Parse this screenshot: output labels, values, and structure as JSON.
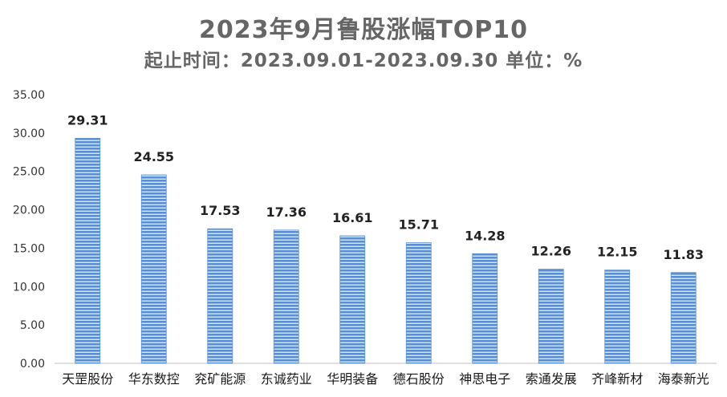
{
  "title": "2023年9月鲁股涨幅TOP10",
  "subtitle": "起止时间：2023.09.01-2023.09.30 单位：%",
  "colors": {
    "bar": "#5b8fd1",
    "bar_stripe": "#dbe7f6",
    "axis": "#bfbfbf",
    "text": "#666666"
  },
  "chart_data": {
    "type": "bar",
    "title": "2023年9月鲁股涨幅TOP10",
    "subtitle": "起止时间：2023.09.01-2023.09.30 单位：%",
    "categories": [
      "天罡股份",
      "华东数控",
      "兖矿能源",
      "东诚药业",
      "华明装备",
      "德石股份",
      "神思电子",
      "索通发展",
      "齐峰新材",
      "海泰新光"
    ],
    "values": [
      29.31,
      24.55,
      17.53,
      17.36,
      16.61,
      15.71,
      14.28,
      12.26,
      12.15,
      11.83
    ],
    "value_labels": [
      "29.31",
      "24.55",
      "17.53",
      "17.36",
      "16.61",
      "15.71",
      "14.28",
      "12.26",
      "12.15",
      "11.83"
    ],
    "yticks": [
      "0.00",
      "5.00",
      "10.00",
      "15.00",
      "20.00",
      "25.00",
      "30.00",
      "35.00"
    ],
    "ylim": [
      0,
      35
    ],
    "grid": false,
    "legend": "none"
  }
}
